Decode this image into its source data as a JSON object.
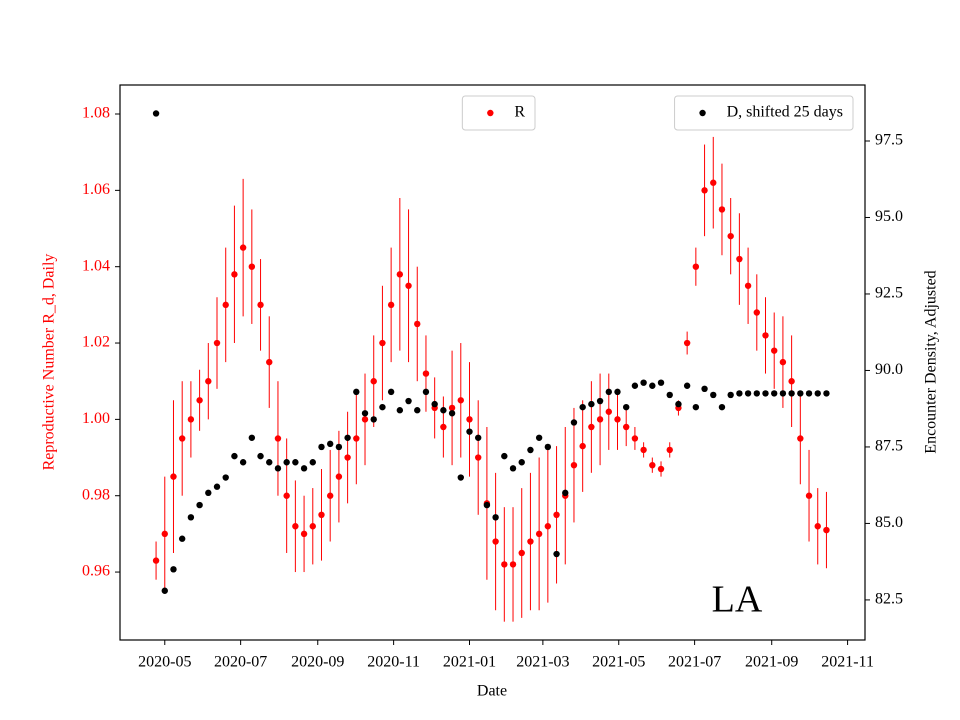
{
  "chart_data": {
    "type": "scatter",
    "annotation": "LA",
    "x_label": "Date",
    "y_label": "Reproductive Number R_d, Daily",
    "y2_label": "Encounter Density, Adjusted",
    "xlim": [
      "2020-03-26",
      "2021-11-15"
    ],
    "xticks": [
      {
        "value": "2020-05-01",
        "label": "2020-05"
      },
      {
        "value": "2020-07-01",
        "label": "2020-07"
      },
      {
        "value": "2020-09-01",
        "label": "2020-09"
      },
      {
        "value": "2020-11-01",
        "label": "2020-11"
      },
      {
        "value": "2021-01-01",
        "label": "2021-01"
      },
      {
        "value": "2021-03-01",
        "label": "2021-03"
      },
      {
        "value": "2021-05-01",
        "label": "2021-05"
      },
      {
        "value": "2021-07-01",
        "label": "2021-07"
      },
      {
        "value": "2021-09-01",
        "label": "2021-09"
      },
      {
        "value": "2021-11-01",
        "label": "2021-11"
      }
    ],
    "ylim": [
      0.9422,
      1.0876
    ],
    "yticks": [
      0.96,
      0.98,
      {
        "value": 1,
        "label": "1.00"
      },
      1.02,
      1.04,
      1.06,
      1.08
    ],
    "y2lim": [
      81.19,
      99.33
    ],
    "y2ticks": [
      82.5,
      {
        "value": 85,
        "label": "85.0"
      },
      87.5,
      {
        "value": 90,
        "label": "90.0"
      },
      92.5,
      {
        "value": 95,
        "label": "95.0"
      },
      97.5
    ],
    "x": [
      "2020-04-24",
      "2020-05-01",
      "2020-05-08",
      "2020-05-15",
      "2020-05-22",
      "2020-05-29",
      "2020-06-05",
      "2020-06-12",
      "2020-06-19",
      "2020-06-26",
      "2020-07-03",
      "2020-07-10",
      "2020-07-17",
      "2020-07-24",
      "2020-07-31",
      "2020-08-07",
      "2020-08-14",
      "2020-08-21",
      "2020-08-28",
      "2020-09-04",
      "2020-09-11",
      "2020-09-18",
      "2020-09-25",
      "2020-10-02",
      "2020-10-09",
      "2020-10-16",
      "2020-10-23",
      "2020-10-30",
      "2020-11-06",
      "2020-11-13",
      "2020-11-20",
      "2020-11-27",
      "2020-12-04",
      "2020-12-11",
      "2020-12-18",
      "2020-12-25",
      "2021-01-01",
      "2021-01-08",
      "2021-01-15",
      "2021-01-22",
      "2021-01-29",
      "2021-02-05",
      "2021-02-12",
      "2021-02-19",
      "2021-02-26",
      "2021-03-05",
      "2021-03-12",
      "2021-03-19",
      "2021-03-26",
      "2021-04-02",
      "2021-04-09",
      "2021-04-16",
      "2021-04-23",
      "2021-04-30",
      "2021-05-07",
      "2021-05-14",
      "2021-05-21",
      "2021-05-28",
      "2021-06-04",
      "2021-06-11",
      "2021-06-18",
      "2021-06-25",
      "2021-07-02",
      "2021-07-09",
      "2021-07-16",
      "2021-07-23",
      "2021-07-30",
      "2021-08-06",
      "2021-08-13",
      "2021-08-20",
      "2021-08-27",
      "2021-09-03",
      "2021-09-10",
      "2021-09-17",
      "2021-09-24",
      "2021-10-01",
      "2021-10-08",
      "2021-10-15"
    ],
    "series": [
      {
        "name": "R",
        "color": "#ff0000",
        "legend": "top-center",
        "values": [
          0.963,
          0.97,
          0.985,
          0.995,
          1.0,
          1.005,
          1.01,
          1.02,
          1.03,
          1.038,
          1.045,
          1.04,
          1.03,
          1.015,
          0.995,
          0.98,
          0.972,
          0.97,
          0.972,
          0.975,
          0.98,
          0.985,
          0.99,
          0.995,
          1.0,
          1.01,
          1.02,
          1.03,
          1.038,
          1.035,
          1.025,
          1.012,
          1.003,
          0.998,
          1.003,
          1.005,
          1.0,
          0.99,
          0.978,
          0.968,
          0.962,
          0.962,
          0.965,
          0.968,
          0.97,
          0.972,
          0.975,
          0.98,
          0.988,
          0.993,
          0.998,
          1.0,
          1.002,
          1.0,
          0.998,
          0.995,
          0.992,
          0.988,
          0.987,
          0.992,
          1.003,
          1.02,
          1.04,
          1.06,
          1.062,
          1.055,
          1.048,
          1.042,
          1.035,
          1.028,
          1.022,
          1.018,
          1.015,
          1.01,
          0.995,
          0.98,
          0.972,
          0.971
        ],
        "errors": [
          0.005,
          0.015,
          0.02,
          0.015,
          0.01,
          0.008,
          0.01,
          0.012,
          0.015,
          0.018,
          0.018,
          0.015,
          0.012,
          0.012,
          0.015,
          0.015,
          0.012,
          0.01,
          0.01,
          0.012,
          0.012,
          0.012,
          0.012,
          0.012,
          0.012,
          0.012,
          0.015,
          0.015,
          0.02,
          0.02,
          0.015,
          0.01,
          0.008,
          0.008,
          0.015,
          0.015,
          0.015,
          0.015,
          0.02,
          0.018,
          0.015,
          0.015,
          0.017,
          0.018,
          0.02,
          0.02,
          0.018,
          0.018,
          0.015,
          0.012,
          0.012,
          0.012,
          0.01,
          0.008,
          0.005,
          0.003,
          0.002,
          0.002,
          0.002,
          0.002,
          0.002,
          0.003,
          0.005,
          0.012,
          0.012,
          0.012,
          0.01,
          0.012,
          0.01,
          0.01,
          0.01,
          0.01,
          0.012,
          0.012,
          0.012,
          0.012,
          0.01,
          0.01
        ]
      },
      {
        "name": "D, shifted 25 days",
        "color": "#000000",
        "axis": "y2",
        "legend": "top-right",
        "values": [
          98.4,
          82.8,
          83.5,
          84.5,
          85.2,
          85.6,
          86.0,
          86.2,
          86.5,
          87.2,
          87.0,
          87.8,
          87.2,
          87.0,
          86.8,
          87.0,
          87.0,
          86.8,
          87.0,
          87.5,
          87.6,
          87.5,
          87.8,
          89.3,
          88.6,
          88.4,
          88.8,
          89.3,
          88.7,
          89.0,
          88.7,
          89.3,
          88.9,
          88.7,
          88.6,
          86.5,
          88.0,
          87.8,
          85.6,
          85.2,
          87.2,
          86.8,
          87.0,
          87.4,
          87.8,
          87.5,
          84.0,
          86.0,
          88.3,
          88.8,
          88.9,
          89.0,
          89.3,
          89.3,
          88.8,
          89.5,
          89.6,
          89.5,
          89.6,
          89.2,
          88.9,
          89.5,
          88.8,
          89.4,
          89.2,
          88.8,
          89.2,
          89.25,
          89.25,
          89.25,
          89.25,
          89.25,
          89.25,
          89.25,
          89.25,
          89.25,
          89.25,
          89.25
        ]
      }
    ]
  }
}
